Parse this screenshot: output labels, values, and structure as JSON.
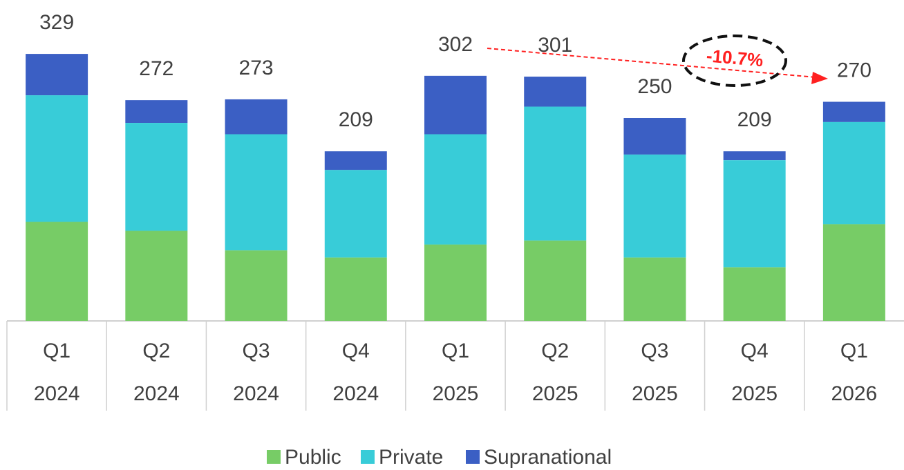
{
  "chart_data": {
    "type": "stacked_bar",
    "categories": [
      [
        "Q1",
        "2024"
      ],
      [
        "Q2",
        "2024"
      ],
      [
        "Q3",
        "2024"
      ],
      [
        "Q4",
        "2024"
      ],
      [
        "Q1",
        "2025"
      ],
      [
        "Q2",
        "2025"
      ],
      [
        "Q3",
        "2025"
      ],
      [
        "Q4",
        "2025"
      ],
      [
        "Q1",
        "2026"
      ]
    ],
    "series": [
      {
        "name": "Public",
        "color": "#77cc66",
        "values": [
          122,
          111,
          87,
          78,
          94,
          99,
          78,
          66,
          119
        ]
      },
      {
        "name": "Private",
        "color": "#38ccd8",
        "values": [
          156,
          133,
          143,
          108,
          136,
          165,
          127,
          132,
          126
        ]
      },
      {
        "name": "Supranational",
        "color": "#3b5fc4",
        "values": [
          51,
          28,
          43,
          23,
          72,
          37,
          45,
          11,
          25
        ]
      }
    ],
    "totals": [
      329,
      272,
      273,
      209,
      302,
      301,
      250,
      209,
      270
    ],
    "annotation": "-10.7%",
    "ylim": [
      0,
      350
    ]
  }
}
